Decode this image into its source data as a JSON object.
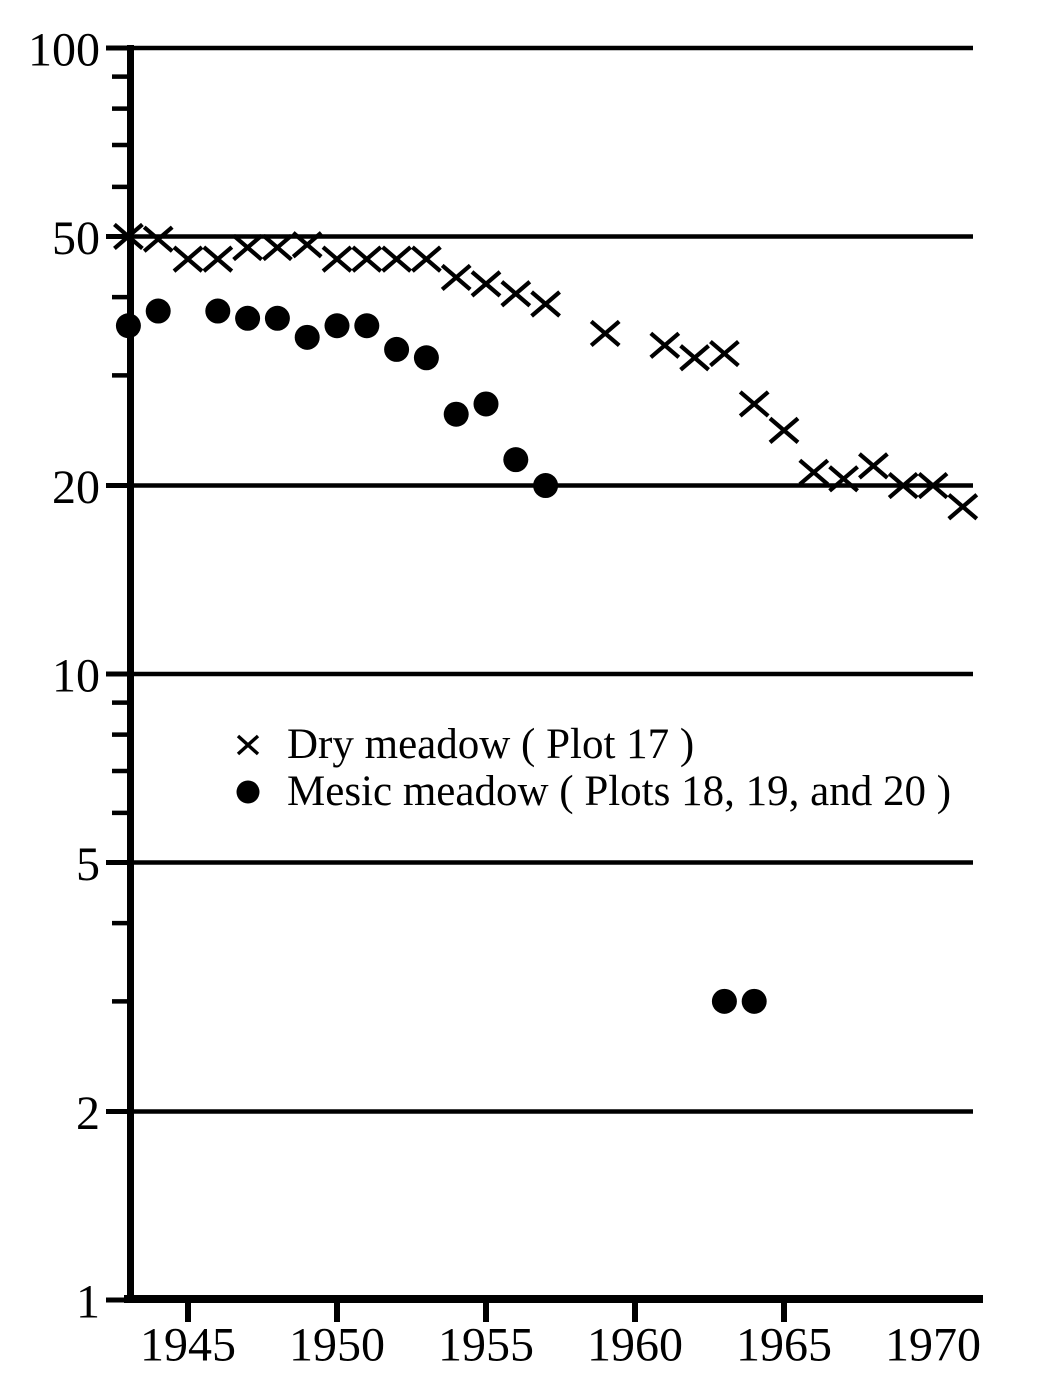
{
  "figure": {
    "background": "#ffffff",
    "ink": "#000000"
  },
  "chart_data": {
    "type": "scatter",
    "title": "",
    "xlabel": "",
    "ylabel": "",
    "y_scale": "log",
    "ylim": [
      1,
      100
    ],
    "x_range": [
      1943,
      1971
    ],
    "grid": "horizontal-lines-at-labeled-y-values",
    "legend_position": "inside-center-left",
    "y_ticks": [
      {
        "label": "100",
        "value": 100
      },
      {
        "label": "50",
        "value": 50
      },
      {
        "label": "20",
        "value": 20
      },
      {
        "label": "10",
        "value": 10
      },
      {
        "label": "5",
        "value": 5
      },
      {
        "label": "2",
        "value": 2
      },
      {
        "label": "1",
        "value": 1
      }
    ],
    "y_minor_tick_values": [
      90,
      80,
      70,
      60,
      40,
      30,
      9,
      8,
      7,
      6,
      4,
      3
    ],
    "x_ticks": [
      {
        "label": "1945",
        "year": 1945,
        "has_tick_mark": true
      },
      {
        "label": "1950",
        "year": 1950,
        "has_tick_mark": true
      },
      {
        "label": "1955",
        "year": 1955,
        "has_tick_mark": true
      },
      {
        "label": "1960",
        "year": 1960,
        "has_tick_mark": true
      },
      {
        "label": "1965",
        "year": 1965,
        "has_tick_mark": true
      },
      {
        "label": "1970",
        "year": 1970,
        "has_tick_mark": false
      }
    ],
    "series": [
      {
        "name": "Dry meadow ( Plot 17 )",
        "marker": "x",
        "points": [
          [
            1943,
            50
          ],
          [
            1944,
            49.5
          ],
          [
            1945,
            46
          ],
          [
            1946,
            46
          ],
          [
            1947,
            48
          ],
          [
            1948,
            48
          ],
          [
            1949,
            48.5
          ],
          [
            1950,
            46
          ],
          [
            1951,
            46
          ],
          [
            1952,
            46
          ],
          [
            1953,
            46
          ],
          [
            1954,
            43
          ],
          [
            1955,
            42
          ],
          [
            1956,
            40.5
          ],
          [
            1957,
            39
          ],
          [
            1959,
            35
          ],
          [
            1961,
            33.5
          ],
          [
            1962,
            32
          ],
          [
            1963,
            32.5
          ],
          [
            1964,
            27
          ],
          [
            1965,
            24.5
          ],
          [
            1966,
            21
          ],
          [
            1967,
            20.5
          ],
          [
            1968,
            21.5
          ],
          [
            1969,
            20
          ],
          [
            1970,
            20
          ],
          [
            1971,
            18.5
          ]
        ]
      },
      {
        "name": "Mesic meadow ( Plots 18, 19, and 20 )",
        "marker": "dot",
        "points": [
          [
            1943,
            36
          ],
          [
            1944,
            38
          ],
          [
            1946,
            38
          ],
          [
            1947,
            37
          ],
          [
            1948,
            37
          ],
          [
            1949,
            34.5
          ],
          [
            1950,
            36
          ],
          [
            1951,
            36
          ],
          [
            1952,
            33
          ],
          [
            1953,
            32
          ],
          [
            1954,
            26
          ],
          [
            1955,
            27
          ],
          [
            1956,
            22
          ],
          [
            1957,
            20
          ],
          [
            1963,
            3
          ],
          [
            1964,
            3
          ]
        ]
      }
    ]
  }
}
